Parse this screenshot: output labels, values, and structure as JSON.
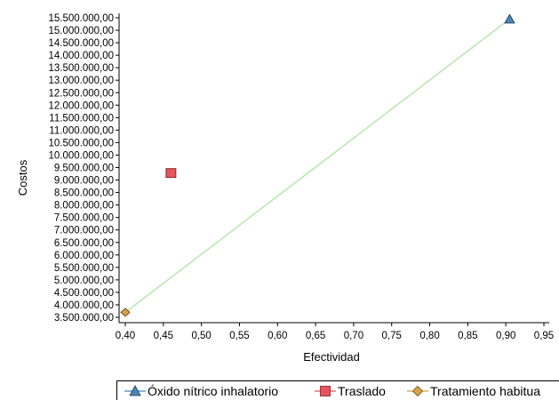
{
  "chart_data": {
    "type": "scatter",
    "xlabel": "Efectividad",
    "ylabel": "Costos",
    "xlim": [
      0.4,
      0.95
    ],
    "ylim": [
      3500000,
      15500000
    ],
    "x_ticks": [
      "0,40",
      "0,45",
      "0,50",
      "0,55",
      "0,60",
      "0,65",
      "0,70",
      "0,75",
      "0,80",
      "0,85",
      "0,90",
      "0,95"
    ],
    "y_ticks": [
      "3.500.000,00",
      "4.000.000,00",
      "4.500.000,00",
      "5.000.000,00",
      "5.500.000,00",
      "6.000.000,00",
      "6.500.000,00",
      "7.000.000,00",
      "7.500.000,00",
      "8.000.000,00",
      "8.500.000,00",
      "9.000.000,00",
      "9.500.000,00",
      "10.000.000,00",
      "10.500.000,00",
      "11.000.000,00",
      "11.500.000,00",
      "12.000.000,00",
      "12.500.000,00",
      "13.000.000,00",
      "13.500.000,00",
      "14.000.000,00",
      "14.500.000,00",
      "15.000.000,00",
      "15.500.000,00"
    ],
    "series": [
      {
        "name": "Óxido nítrico inhalatorio",
        "marker": "triangle",
        "color": "#4a86b5",
        "x": 0.905,
        "y": 15450000
      },
      {
        "name": "Traslado",
        "marker": "square",
        "color": "#e8545e",
        "x": 0.46,
        "y": 9280000
      },
      {
        "name": "Tratamiento habitua",
        "marker": "diamond",
        "color": "#d4a24a",
        "x": 0.4,
        "y": 3700000
      }
    ],
    "frontier": {
      "color": "#b8e6b0",
      "from": [
        0.4,
        3700000
      ],
      "to": [
        0.905,
        15450000
      ]
    },
    "grid": false,
    "legend_position": "bottom"
  }
}
